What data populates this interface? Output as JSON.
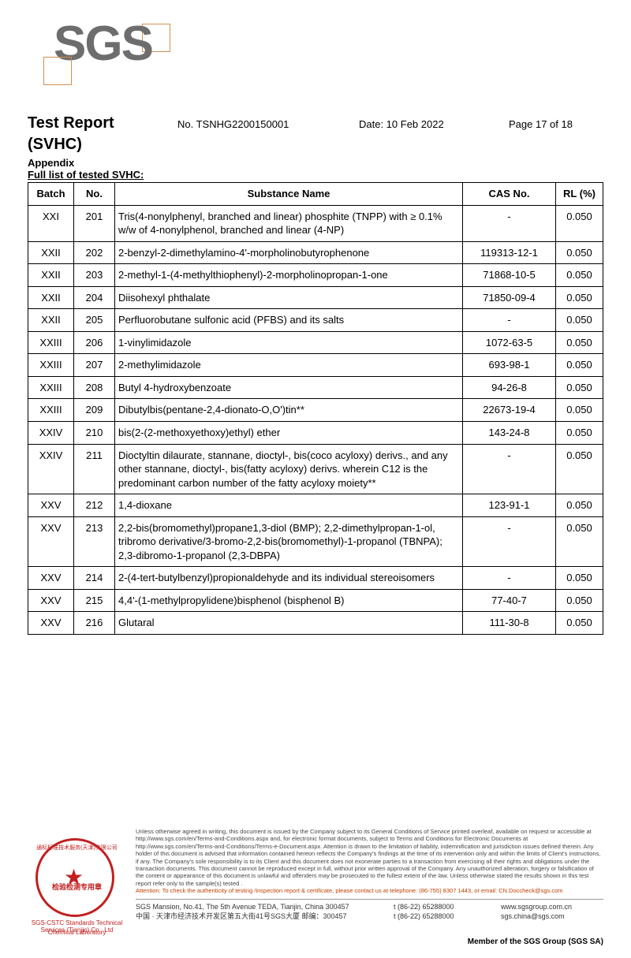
{
  "logo": {
    "text": "SGS"
  },
  "header": {
    "title": "Test Report",
    "subtitle": "(SVHC)",
    "no_label": "No. TSNHG2200150001",
    "date_label": "Date: 10 Feb 2022",
    "page_label": "Page 17 of 18",
    "appendix": "Appendix",
    "fulllist": "Full list of tested SVHC:"
  },
  "table": {
    "head": {
      "batch": "Batch",
      "no": "No.",
      "sub": "Substance Name",
      "cas": "CAS No.",
      "rl": "RL (%)"
    },
    "rows": [
      {
        "batch": "XXI",
        "no": "201",
        "sub": "Tris(4-nonylphenyl, branched and linear) phosphite (TNPP) with ≥ 0.1% w/w of 4-nonylphenol, branched and linear (4-NP)",
        "cas": "-",
        "rl": "0.050"
      },
      {
        "batch": "XXII",
        "no": "202",
        "sub": "2-benzyl-2-dimethylamino-4'-morpholinobutyrophenone",
        "cas": "119313-12-1",
        "rl": "0.050"
      },
      {
        "batch": "XXII",
        "no": "203",
        "sub": "2-methyl-1-(4-methylthiophenyl)-2-morpholinopropan-1-one",
        "cas": "71868-10-5",
        "rl": "0.050"
      },
      {
        "batch": "XXII",
        "no": "204",
        "sub": "Diisohexyl phthalate",
        "cas": "71850-09-4",
        "rl": "0.050"
      },
      {
        "batch": "XXII",
        "no": "205",
        "sub": "Perfluorobutane sulfonic acid (PFBS) and its salts",
        "cas": "-",
        "rl": "0.050"
      },
      {
        "batch": "XXIII",
        "no": "206",
        "sub": "1-vinylimidazole",
        "cas": "1072-63-5",
        "rl": "0.050"
      },
      {
        "batch": "XXIII",
        "no": "207",
        "sub": "2-methylimidazole",
        "cas": "693-98-1",
        "rl": "0.050"
      },
      {
        "batch": "XXIII",
        "no": "208",
        "sub": "Butyl 4-hydroxybenzoate",
        "cas": "94-26-8",
        "rl": "0.050"
      },
      {
        "batch": "XXIII",
        "no": "209",
        "sub": "Dibutylbis(pentane-2,4-dionato-O,O')tin**",
        "cas": "22673-19-4",
        "rl": "0.050"
      },
      {
        "batch": "XXIV",
        "no": "210",
        "sub": "bis(2-(2-methoxyethoxy)ethyl) ether",
        "cas": "143-24-8",
        "rl": "0.050"
      },
      {
        "batch": "XXIV",
        "no": "211",
        "sub": "Dioctyltin dilaurate, stannane, dioctyl-, bis(coco acyloxy) derivs., and any other stannane, dioctyl-, bis(fatty acyloxy) derivs. wherein C12 is the predominant carbon number of the fatty acyloxy moiety**",
        "cas": "-",
        "rl": "0.050"
      },
      {
        "batch": "XXV",
        "no": "212",
        "sub": "1,4-dioxane",
        "cas": "123-91-1",
        "rl": "0.050"
      },
      {
        "batch": "XXV",
        "no": "213",
        "sub": "2,2-bis(bromomethyl)propane1,3-diol (BMP); 2,2-dimethylpropan-1-ol, tribromo derivative/3-bromo-2,2-bis(bromomethyl)-1-propanol (TBNPA); 2,3-dibromo-1-propanol (2,3-DBPA)",
        "cas": "-",
        "rl": "0.050"
      },
      {
        "batch": "XXV",
        "no": "214",
        "sub": "2-(4-tert-butylbenzyl)propionaldehyde and its individual stereoisomers",
        "cas": "-",
        "rl": "0.050"
      },
      {
        "batch": "XXV",
        "no": "215",
        "sub": "4,4'-(1-methylpropylidene)bisphenol (bisphenol B)",
        "cas": "77-40-7",
        "rl": "0.050"
      },
      {
        "batch": "XXV",
        "no": "216",
        "sub": "Glutaral",
        "cas": "111-30-8",
        "rl": "0.050"
      }
    ]
  },
  "stamp": {
    "cn": "检验检测专用章",
    "label1": "SGS-CSTC Standards Technical Services (Tianjin) Co., Ltd",
    "label2": "Chemical Laboratory"
  },
  "fine": {
    "body": "Unless otherwise agreed in writing, this document is issued by the Company subject to its General Conditions of Service printed overleaf, available on request or accessible at http://www.sgs.com/en/Terms-and-Conditions.aspx and, for electronic format documents, subject to Terms and Conditions for Electronic Documents at http://www.sgs.com/en/Terms-and-Conditions/Terms-e-Document.aspx. Attention is drawn to the limitation of liability, indemnification and jurisdiction issues defined therein. Any holder of this document is advised that information contained hereon reflects the Company's findings at the time of its intervention only and within the limits of Client's instructions, if any. The Company's sole responsibility is to its Client and this document does not exonerate parties to a transaction from exercising all their rights and obligations under the transaction documents. This document cannot be reproduced except in full, without prior written approval of the Company. Any unauthorized alteration, forgery or falsification of the content or appearance of this document is unlawful and offenders may be prosecuted to the fullest extent of the law. Unless otherwise stated the results shown in this test report refer only to the sample(s) tested .",
    "attn": "Attention: To check the authenticity of testing /inspection report & certificate, please contact us at telephone: (86-755) 8307 1443, or email: CN.Doccheck@sgs.com"
  },
  "addr": {
    "line1_en": "SGS Mansion, No.41, The 5th Avenue TEDA, Tianjin, China 300457",
    "line1_cn": "中国 · 天津市经济技术开发区第五大街41号SGS大厦        邮编：300457",
    "tel1": "t  (86-22) 65288000",
    "tel2": "t  (86-22) 65288000",
    "web1": "www.sgsgroup.com.cn",
    "web2": "sgs.china@sgs.com"
  },
  "member": "Member of the SGS Group (SGS SA)"
}
